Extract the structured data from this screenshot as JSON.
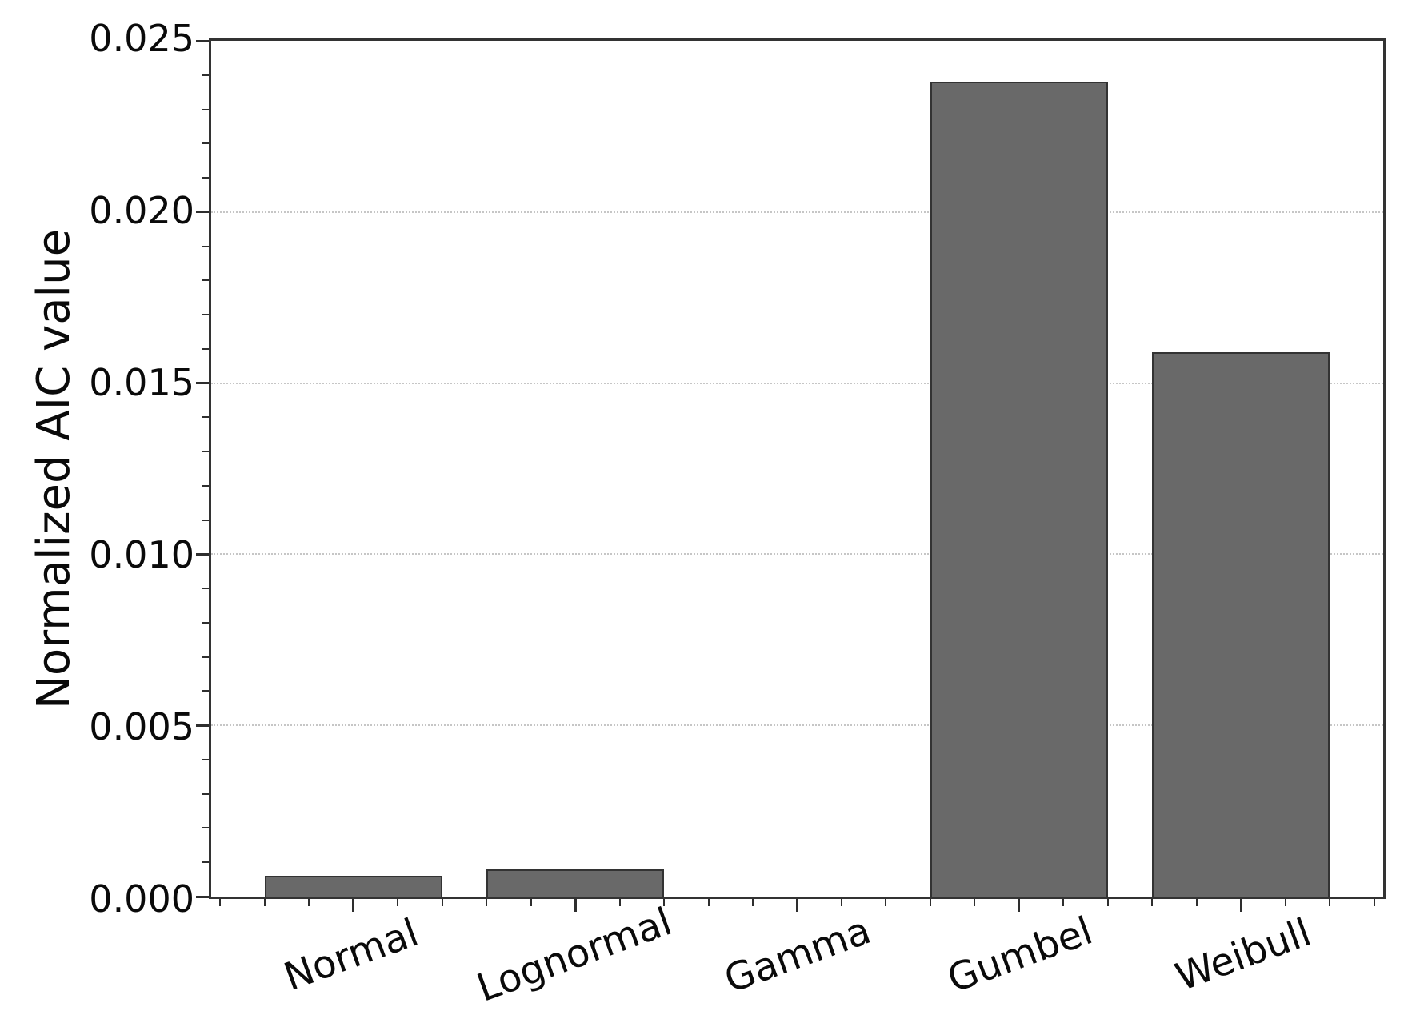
{
  "figure": {
    "background": "#ffffff",
    "bar_color": "#696969",
    "bar_edge_color": "#333333",
    "axis_color": "#2e2e2e",
    "grid_color": "#c6c6c6",
    "text_color": "#0a0a0a"
  },
  "chart_data": {
    "type": "bar",
    "title": "",
    "xlabel": "",
    "ylabel": "Normalized AIC value",
    "categories": [
      "Normal",
      "Lognormal",
      "Gamma",
      "Gumbel",
      "Weibull"
    ],
    "values": [
      0.0006,
      0.0008,
      0.0,
      0.0238,
      0.0159
    ],
    "ylim": [
      0,
      0.025
    ],
    "ytick_labels": [
      "0.000",
      "0.005",
      "0.010",
      "0.015",
      "0.020",
      "0.025"
    ],
    "ytick_values": [
      0,
      0.005,
      0.01,
      0.015,
      0.02,
      0.025
    ],
    "y_minor_step": 0.001,
    "xlim": [
      -0.64,
      4.64
    ],
    "x_minor_step": 0.2,
    "bar_width": 0.8,
    "grid": "horizontal dotted at major y ticks, behind bars",
    "legend_position": "none",
    "x_tick_rotation_deg": 20
  }
}
